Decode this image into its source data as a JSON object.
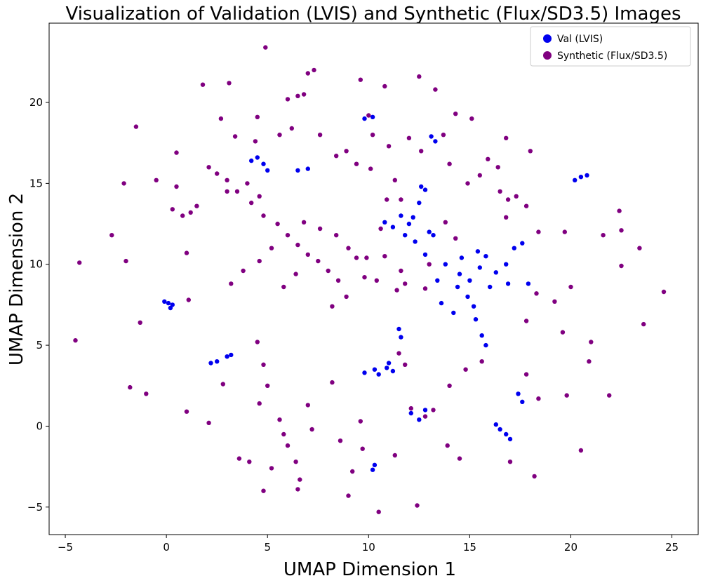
{
  "chart_data": {
    "type": "scatter",
    "title": "Visualization of Validation (LVIS) and Synthetic (Flux/SD3.5) Images",
    "xlabel": "UMAP Dimension 1",
    "ylabel": "UMAP Dimension 2",
    "xlim": [
      -5.8,
      26.3
    ],
    "ylim": [
      -6.7,
      24.9
    ],
    "xticks": [
      -5,
      0,
      5,
      10,
      15,
      20,
      25
    ],
    "yticks": [
      -5,
      0,
      5,
      10,
      15,
      20
    ],
    "xtick_labels": [
      "−5",
      "0",
      "5",
      "10",
      "15",
      "20",
      "25"
    ],
    "ytick_labels": [
      "−5",
      "0",
      "5",
      "10",
      "15",
      "20"
    ],
    "grid": false,
    "legend_position": "top-right",
    "series": [
      {
        "name": "Val (LVIS)",
        "color": "#0000ee",
        "points": [
          [
            0.1,
            7.6
          ],
          [
            0.3,
            7.5
          ],
          [
            -0.1,
            7.7
          ],
          [
            0.2,
            7.3
          ],
          [
            2.5,
            4.0
          ],
          [
            3.0,
            4.3
          ],
          [
            3.2,
            4.4
          ],
          [
            2.2,
            3.9
          ],
          [
            4.5,
            16.6
          ],
          [
            4.8,
            16.2
          ],
          [
            5.0,
            15.8
          ],
          [
            4.2,
            16.4
          ],
          [
            7.0,
            15.9
          ],
          [
            6.5,
            15.8
          ],
          [
            9.8,
            19.0
          ],
          [
            10.2,
            19.1
          ],
          [
            13.1,
            17.9
          ],
          [
            13.3,
            17.6
          ],
          [
            10.3,
            3.5
          ],
          [
            10.5,
            3.2
          ],
          [
            10.9,
            3.6
          ],
          [
            11.2,
            3.4
          ],
          [
            11.0,
            3.9
          ],
          [
            9.8,
            3.3
          ],
          [
            11.5,
            6.0
          ],
          [
            11.6,
            5.5
          ],
          [
            12.1,
            0.8
          ],
          [
            12.5,
            0.4
          ],
          [
            12.8,
            1.0
          ],
          [
            10.3,
            -2.4
          ],
          [
            10.2,
            -2.7
          ],
          [
            16.5,
            -0.2
          ],
          [
            16.8,
            -0.5
          ],
          [
            17.0,
            -0.8
          ],
          [
            16.3,
            0.1
          ],
          [
            17.4,
            2.0
          ],
          [
            17.6,
            1.5
          ],
          [
            20.2,
            15.2
          ],
          [
            20.5,
            15.4
          ],
          [
            20.8,
            15.5
          ],
          [
            11.6,
            13.0
          ],
          [
            12.0,
            12.5
          ],
          [
            12.5,
            13.8
          ],
          [
            12.8,
            14.6
          ],
          [
            13.0,
            12.0
          ],
          [
            12.3,
            11.4
          ],
          [
            12.8,
            10.6
          ],
          [
            13.2,
            11.8
          ],
          [
            11.2,
            12.3
          ],
          [
            10.8,
            12.6
          ],
          [
            13.8,
            10.0
          ],
          [
            14.5,
            9.4
          ],
          [
            15.0,
            9.0
          ],
          [
            15.5,
            9.8
          ],
          [
            15.8,
            10.5
          ],
          [
            16.3,
            9.5
          ],
          [
            16.8,
            10.0
          ],
          [
            17.2,
            11.0
          ],
          [
            17.6,
            11.3
          ],
          [
            17.9,
            8.8
          ],
          [
            14.4,
            8.6
          ],
          [
            14.9,
            8.0
          ],
          [
            15.2,
            7.4
          ],
          [
            15.3,
            6.6
          ],
          [
            15.6,
            5.6
          ],
          [
            15.8,
            5.0
          ],
          [
            14.2,
            7.0
          ],
          [
            13.6,
            7.6
          ],
          [
            14.6,
            10.4
          ],
          [
            13.4,
            9.0
          ],
          [
            12.6,
            14.8
          ],
          [
            12.2,
            12.9
          ],
          [
            11.8,
            11.8
          ],
          [
            16.0,
            8.6
          ],
          [
            15.4,
            10.8
          ],
          [
            16.9,
            8.8
          ]
        ]
      },
      {
        "name": "Synthetic (Flux/SD3.5)",
        "color": "#800080",
        "points": [
          [
            4.9,
            23.4
          ],
          [
            7.3,
            22.0
          ],
          [
            7.0,
            21.8
          ],
          [
            1.8,
            21.1
          ],
          [
            3.1,
            21.2
          ],
          [
            9.6,
            21.4
          ],
          [
            6.8,
            20.5
          ],
          [
            6.5,
            20.4
          ],
          [
            6.0,
            20.2
          ],
          [
            12.5,
            21.6
          ],
          [
            10.8,
            21.0
          ],
          [
            13.3,
            20.8
          ],
          [
            4.5,
            19.1
          ],
          [
            2.7,
            19.0
          ],
          [
            10.0,
            19.2
          ],
          [
            14.3,
            19.3
          ],
          [
            15.1,
            19.0
          ],
          [
            -1.5,
            18.5
          ],
          [
            -2.1,
            15.0
          ],
          [
            -0.5,
            15.2
          ],
          [
            0.5,
            16.9
          ],
          [
            2.1,
            16.0
          ],
          [
            2.5,
            15.6
          ],
          [
            3.0,
            15.2
          ],
          [
            3.5,
            14.5
          ],
          [
            4.2,
            13.8
          ],
          [
            4.8,
            13.0
          ],
          [
            5.5,
            12.5
          ],
          [
            6.0,
            11.8
          ],
          [
            6.5,
            11.2
          ],
          [
            7.0,
            10.6
          ],
          [
            7.5,
            10.2
          ],
          [
            8.0,
            9.6
          ],
          [
            8.5,
            9.0
          ],
          [
            5.2,
            11.0
          ],
          [
            4.6,
            10.2
          ],
          [
            3.8,
            9.6
          ],
          [
            3.2,
            8.8
          ],
          [
            6.8,
            12.6
          ],
          [
            7.6,
            12.2
          ],
          [
            8.4,
            11.8
          ],
          [
            9.0,
            11.0
          ],
          [
            9.4,
            10.4
          ],
          [
            9.8,
            9.2
          ],
          [
            8.9,
            8.0
          ],
          [
            8.2,
            7.4
          ],
          [
            6.4,
            9.4
          ],
          [
            5.8,
            8.6
          ],
          [
            4.0,
            15.0
          ],
          [
            4.6,
            14.2
          ],
          [
            0.3,
            13.4
          ],
          [
            0.8,
            13.0
          ],
          [
            1.2,
            13.2
          ],
          [
            0.5,
            14.8
          ],
          [
            1.5,
            13.6
          ],
          [
            -2.7,
            11.8
          ],
          [
            -2.0,
            10.2
          ],
          [
            -4.3,
            10.1
          ],
          [
            1.0,
            10.7
          ],
          [
            -1.3,
            6.4
          ],
          [
            -4.5,
            5.3
          ],
          [
            1.1,
            7.8
          ],
          [
            4.5,
            5.2
          ],
          [
            4.8,
            3.8
          ],
          [
            5.0,
            2.5
          ],
          [
            4.6,
            1.4
          ],
          [
            5.6,
            0.4
          ],
          [
            5.8,
            -0.5
          ],
          [
            6.0,
            -1.2
          ],
          [
            6.4,
            -2.2
          ],
          [
            6.6,
            -3.3
          ],
          [
            3.6,
            -2.0
          ],
          [
            4.1,
            -2.2
          ],
          [
            5.2,
            -2.6
          ],
          [
            4.8,
            -4.0
          ],
          [
            6.5,
            -3.9
          ],
          [
            7.2,
            -0.2
          ],
          [
            8.6,
            -0.9
          ],
          [
            9.0,
            -4.3
          ],
          [
            9.7,
            -1.4
          ],
          [
            9.2,
            -2.8
          ],
          [
            10.5,
            -5.3
          ],
          [
            11.3,
            -1.8
          ],
          [
            12.4,
            -4.9
          ],
          [
            13.9,
            -1.2
          ],
          [
            14.5,
            -2.0
          ],
          [
            17.0,
            -2.2
          ],
          [
            18.2,
            -3.1
          ],
          [
            -1.8,
            2.4
          ],
          [
            -1.0,
            2.0
          ],
          [
            1.0,
            0.9
          ],
          [
            2.1,
            0.2
          ],
          [
            2.8,
            2.6
          ],
          [
            7.0,
            1.3
          ],
          [
            8.2,
            2.7
          ],
          [
            9.6,
            0.3
          ],
          [
            12.1,
            1.1
          ],
          [
            12.8,
            0.6
          ],
          [
            13.2,
            1.0
          ],
          [
            11.5,
            4.5
          ],
          [
            11.8,
            3.8
          ],
          [
            14.0,
            2.5
          ],
          [
            14.8,
            3.5
          ],
          [
            15.6,
            4.0
          ],
          [
            17.8,
            3.2
          ],
          [
            19.8,
            1.9
          ],
          [
            21.9,
            1.9
          ],
          [
            20.5,
            -1.5
          ],
          [
            18.4,
            1.7
          ],
          [
            20.9,
            4.0
          ],
          [
            21.0,
            5.2
          ],
          [
            23.6,
            6.3
          ],
          [
            24.6,
            8.3
          ],
          [
            22.5,
            9.9
          ],
          [
            23.4,
            11.0
          ],
          [
            22.5,
            12.1
          ],
          [
            22.4,
            13.3
          ],
          [
            21.6,
            11.8
          ],
          [
            19.7,
            12.0
          ],
          [
            20.0,
            8.6
          ],
          [
            19.2,
            7.7
          ],
          [
            18.3,
            8.2
          ],
          [
            19.6,
            5.8
          ],
          [
            17.8,
            6.5
          ],
          [
            16.8,
            12.9
          ],
          [
            16.5,
            14.5
          ],
          [
            15.5,
            15.5
          ],
          [
            16.4,
            16.0
          ],
          [
            15.9,
            16.5
          ],
          [
            16.8,
            17.8
          ],
          [
            18.0,
            17.0
          ],
          [
            17.3,
            14.2
          ],
          [
            13.8,
            12.6
          ],
          [
            14.3,
            11.6
          ],
          [
            11.8,
            8.8
          ],
          [
            11.6,
            9.6
          ],
          [
            12.8,
            8.5
          ],
          [
            10.6,
            12.2
          ],
          [
            10.9,
            14.0
          ],
          [
            10.1,
            15.9
          ],
          [
            11.3,
            15.2
          ],
          [
            11.6,
            14.0
          ],
          [
            12.6,
            17.0
          ],
          [
            13.7,
            18.0
          ],
          [
            11.0,
            17.3
          ],
          [
            10.2,
            18.0
          ],
          [
            9.4,
            16.2
          ],
          [
            8.9,
            17.0
          ],
          [
            8.4,
            16.7
          ],
          [
            7.6,
            18.0
          ],
          [
            6.2,
            18.4
          ],
          [
            5.6,
            18.0
          ],
          [
            4.4,
            17.6
          ],
          [
            3.4,
            17.9
          ],
          [
            3.0,
            14.5
          ],
          [
            13.0,
            10.0
          ],
          [
            14.0,
            16.2
          ],
          [
            14.9,
            15.0
          ],
          [
            16.9,
            14.0
          ],
          [
            12.0,
            17.8
          ],
          [
            17.8,
            13.6
          ],
          [
            18.4,
            12.0
          ],
          [
            9.9,
            10.4
          ],
          [
            10.4,
            9.0
          ],
          [
            11.4,
            8.4
          ],
          [
            10.8,
            10.5
          ]
        ]
      }
    ]
  }
}
